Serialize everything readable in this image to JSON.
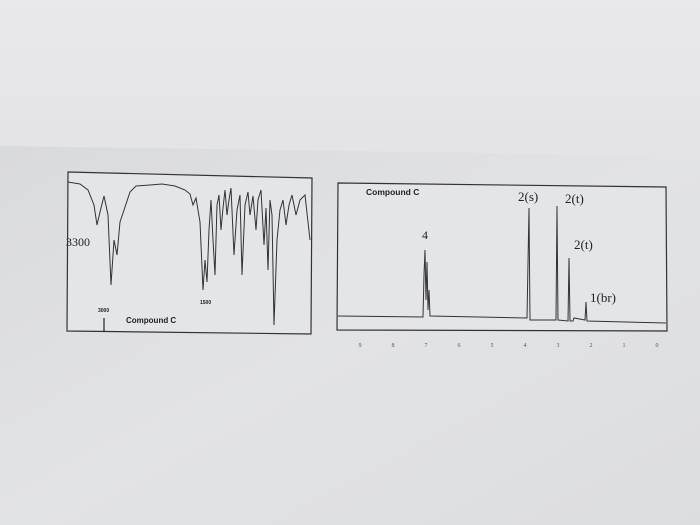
{
  "ir_spectrum": {
    "title": "Compound C",
    "peak_labels": [
      "3300",
      "3000",
      "1500"
    ]
  },
  "nmr_spectrum": {
    "title": "Compound C",
    "peak_labels": [
      "4",
      "2(s)",
      "2(t)",
      "2(t)",
      "1(br)"
    ],
    "axis_labels": [
      "9",
      "8",
      "7",
      "6",
      "5",
      "4",
      "3",
      "2",
      "1",
      "0"
    ]
  }
}
